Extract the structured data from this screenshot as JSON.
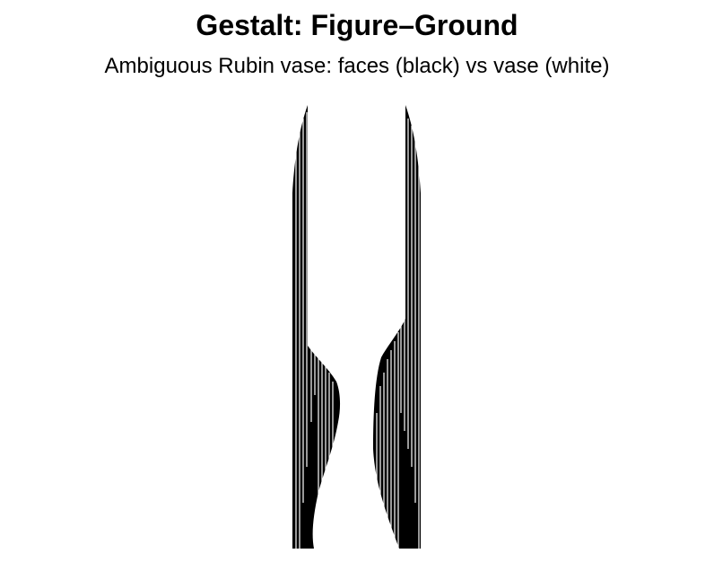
{
  "figure": {
    "title": "Gestalt: Figure–Ground",
    "subtitle": "Ambiguous Rubin vase: faces (black) vs vase (white)"
  },
  "colors": {
    "faces": "#000000",
    "vase": "#ffffff"
  }
}
